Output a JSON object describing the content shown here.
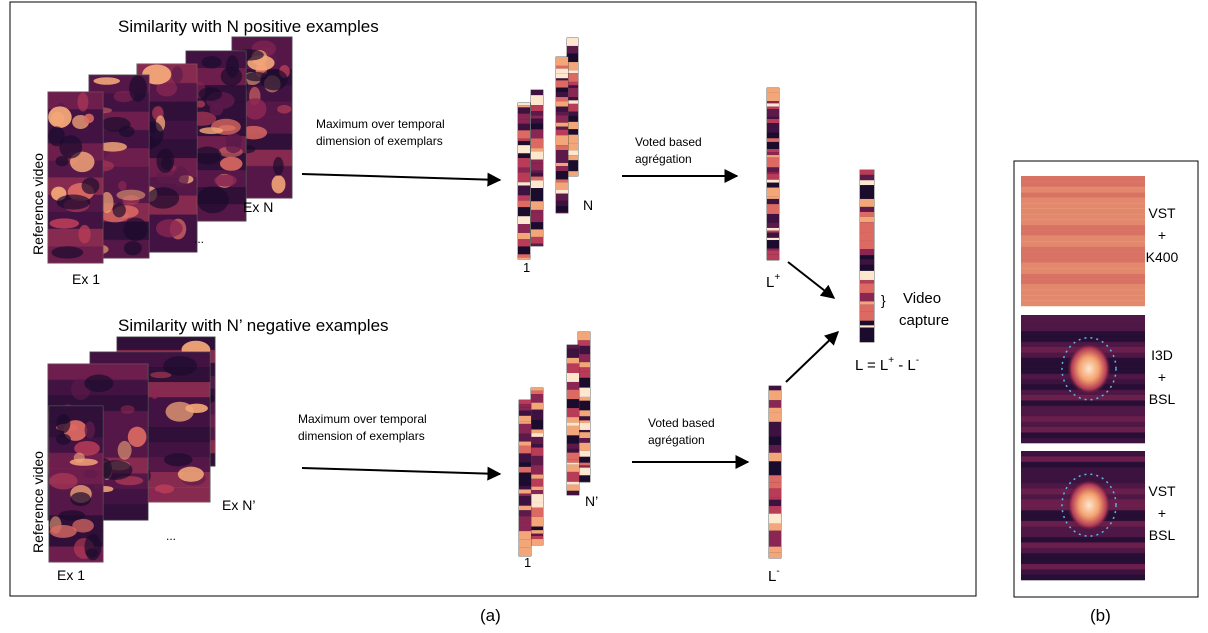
{
  "panel_a": {
    "caption": "(a)",
    "positive": {
      "title": "Similarity with N positive examples",
      "axis_label": "Reference video",
      "first_label": "Ex 1",
      "last_label": "Ex N",
      "ellipsis": "...",
      "step1_line1": "Maximum over temporal",
      "step1_line2": "dimension of exemplars",
      "strip_first": "1",
      "strip_last": "N",
      "step2_line1": "Voted based",
      "step2_line2": "agrégation",
      "vector_label": "L",
      "vector_sup": "+"
    },
    "negative": {
      "title": "Similarity with N’ negative examples",
      "axis_label": "Reference video",
      "first_label": "Ex 1",
      "last_label": "Ex N’",
      "ellipsis": "...",
      "step1_line1": "Maximum over temporal",
      "step1_line2": "dimension of exemplars",
      "strip_first": "1",
      "strip_last": "N’",
      "step2_line1": "Voted based",
      "step2_line2": "agrégation",
      "vector_label": "L",
      "vector_sup": "-"
    },
    "result": {
      "brace": "}",
      "capture_line1": "Video",
      "capture_line2": "capture",
      "formula_lhs": "L = L",
      "formula_sup1": "+",
      "formula_mid": " -  L",
      "formula_sup2": "-"
    }
  },
  "panel_b": {
    "caption": "(b)",
    "rows": [
      {
        "line1": "VST",
        "line2": "+",
        "line3": "K400"
      },
      {
        "line1": "I3D",
        "line2": "+",
        "line3": "BSL"
      },
      {
        "line1": "VST",
        "line2": "+",
        "line3": "BSL"
      }
    ]
  },
  "colors": {
    "heat_dark": "#1b0c2e",
    "heat_mid": "#8a2653",
    "heat_bright": "#f3a778",
    "heat_peak": "#fde7cf",
    "frame": "#000000",
    "circle": "#5cb8e6"
  }
}
